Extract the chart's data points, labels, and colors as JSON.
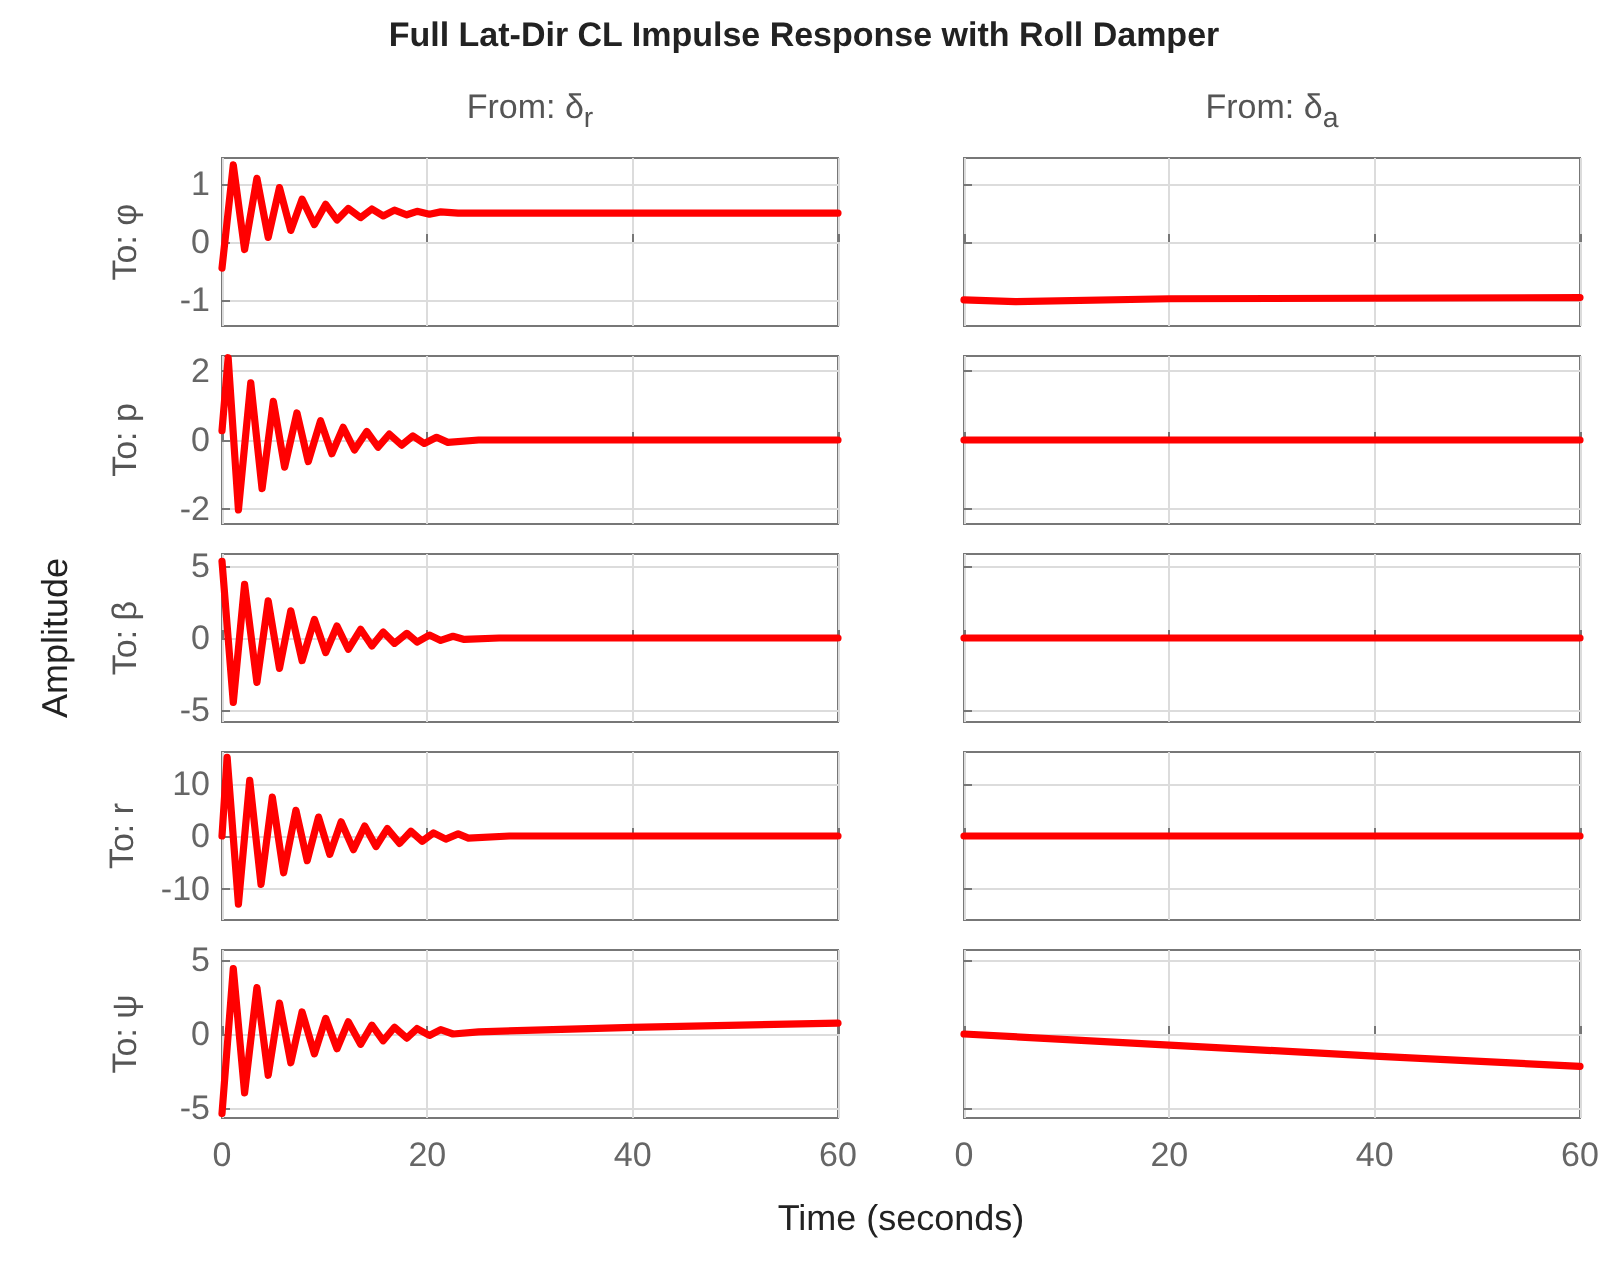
{
  "chart_data": [
    {
      "type": "line",
      "title": "Full Lat-Dir CL Impulse Response with Roll Damper",
      "subtitle": "From: δ$_{r}$",
      "ylabel": "To: φ",
      "series": [
        {
          "color": "#ff0000",
          "x": [
            0,
            1.1,
            2.2,
            3.4,
            4.5,
            5.6,
            6.7,
            7.8,
            9.0,
            10.1,
            11.2,
            12.3,
            13.5,
            14.6,
            15.7,
            16.8,
            18,
            19,
            20.2,
            21.3,
            23,
            60
          ],
          "values": [
            -0.45,
            1.33,
            -0.13,
            1.1,
            0.08,
            0.94,
            0.2,
            0.74,
            0.3,
            0.65,
            0.38,
            0.58,
            0.42,
            0.57,
            0.45,
            0.55,
            0.47,
            0.53,
            0.48,
            0.52,
            0.5,
            0.5
          ]
        }
      ],
      "xlim": [
        0,
        60
      ],
      "xticks": [
        0,
        20,
        40,
        60
      ],
      "ylim": [
        -1.45,
        1.45
      ],
      "yticks": [
        -1,
        0,
        1
      ],
      "grid": true,
      "tick_labels": "y"
    },
    {
      "type": "line",
      "subtitle": "From: δ$_{a}$",
      "series": [
        {
          "color": "#ff0000",
          "x": [
            0,
            5,
            20,
            60
          ],
          "values": [
            -1.0,
            -1.03,
            -0.98,
            -0.96
          ]
        }
      ],
      "xlim": [
        0,
        60
      ],
      "xticks": [
        0,
        20,
        40,
        60
      ],
      "ylim": [
        -1.45,
        1.45
      ],
      "yticks": [
        -1,
        0,
        1
      ],
      "grid": true,
      "tick_labels": false
    },
    {
      "type": "line",
      "ylabel": "To: p",
      "series": [
        {
          "color": "#ff0000",
          "x": [
            0,
            0.6,
            1.6,
            2.8,
            3.9,
            5.0,
            6.1,
            7.3,
            8.4,
            9.6,
            10.7,
            11.8,
            12.9,
            14.1,
            15.2,
            16.3,
            17.5,
            18.6,
            19.7,
            20.9,
            22,
            25,
            60
          ],
          "values": [
            0.27,
            2.4,
            -2.04,
            1.67,
            -1.42,
            1.13,
            -0.79,
            0.79,
            -0.63,
            0.56,
            -0.4,
            0.37,
            -0.29,
            0.25,
            -0.21,
            0.17,
            -0.15,
            0.12,
            -0.1,
            0.08,
            -0.07,
            0,
            0
          ]
        }
      ],
      "xlim": [
        0,
        60
      ],
      "xticks": [
        0,
        20,
        40,
        60
      ],
      "ylim": [
        -2.45,
        2.45
      ],
      "yticks": [
        -2,
        0,
        2
      ],
      "grid": true,
      "tick_labels": "y"
    },
    {
      "type": "line",
      "series": [
        {
          "color": "#ff0000",
          "x": [
            0,
            20,
            60
          ],
          "values": [
            0,
            0,
            0
          ]
        }
      ],
      "xlim": [
        0,
        60
      ],
      "xticks": [
        0,
        20,
        40,
        60
      ],
      "ylim": [
        -2.45,
        2.45
      ],
      "yticks": [
        -2,
        0,
        2
      ],
      "grid": true,
      "tick_labels": false
    },
    {
      "type": "line",
      "ylabel": "To: β",
      "annotations": [
        "Amplitude"
      ],
      "series": [
        {
          "color": "#ff0000",
          "x": [
            0,
            1.1,
            2.2,
            3.4,
            4.5,
            5.6,
            6.7,
            7.8,
            9.0,
            10.1,
            11.2,
            12.3,
            13.5,
            14.6,
            15.7,
            16.8,
            18,
            19,
            20.2,
            21.3,
            22.5,
            23.6,
            27,
            60
          ],
          "values": [
            5.3,
            -4.45,
            3.7,
            -3.07,
            2.57,
            -2.1,
            1.88,
            -1.56,
            1.28,
            -1.0,
            0.83,
            -0.78,
            0.6,
            -0.55,
            0.41,
            -0.37,
            0.32,
            -0.28,
            0.2,
            -0.17,
            0.12,
            -0.1,
            0,
            0
          ]
        }
      ],
      "xlim": [
        0,
        60
      ],
      "xticks": [
        0,
        20,
        40,
        60
      ],
      "ylim": [
        -5.8,
        5.8
      ],
      "yticks": [
        -5,
        0,
        5
      ],
      "grid": true,
      "tick_labels": "y"
    },
    {
      "type": "line",
      "series": [
        {
          "color": "#ff0000",
          "x": [
            0,
            20,
            60
          ],
          "values": [
            0,
            0,
            0
          ]
        }
      ],
      "xlim": [
        0,
        60
      ],
      "xticks": [
        0,
        20,
        40,
        60
      ],
      "ylim": [
        -5.8,
        5.8
      ],
      "yticks": [
        -5,
        0,
        5
      ],
      "grid": true,
      "tick_labels": false
    },
    {
      "type": "line",
      "ylabel": "To: r",
      "series": [
        {
          "color": "#ff0000",
          "x": [
            0,
            0.5,
            1.6,
            2.7,
            3.8,
            4.9,
            6.0,
            7.2,
            8.3,
            9.4,
            10.5,
            11.6,
            12.8,
            13.9,
            15,
            16.1,
            17.3,
            18.4,
            19.5,
            20.6,
            21.8,
            23,
            24,
            28,
            60
          ],
          "values": [
            0,
            15,
            -13,
            10.6,
            -9.2,
            7.4,
            -7,
            4.9,
            -4.7,
            3.6,
            -3.5,
            2.7,
            -2.6,
            1.9,
            -2.0,
            1.4,
            -1.4,
            0.9,
            -1.0,
            0.6,
            -0.6,
            0.4,
            -0.4,
            0,
            0
          ]
        }
      ],
      "xlim": [
        0,
        60
      ],
      "xticks": [
        0,
        20,
        40,
        60
      ],
      "ylim": [
        -16,
        16
      ],
      "yticks": [
        -10,
        0,
        10
      ],
      "grid": true,
      "tick_labels": "y"
    },
    {
      "type": "line",
      "series": [
        {
          "color": "#ff0000",
          "x": [
            0,
            20,
            60
          ],
          "values": [
            0,
            0,
            0
          ]
        }
      ],
      "xlim": [
        0,
        60
      ],
      "xticks": [
        0,
        20,
        40,
        60
      ],
      "ylim": [
        -16,
        16
      ],
      "yticks": [
        -10,
        0,
        10
      ],
      "grid": true,
      "tick_labels": false
    },
    {
      "type": "line",
      "ylabel": "To: ψ",
      "xlabel": "Time (seconds)",
      "series": [
        {
          "color": "#ff0000",
          "x": [
            0,
            1.1,
            2.2,
            3.4,
            4.5,
            5.6,
            6.7,
            7.8,
            9.0,
            10.1,
            11.2,
            12.3,
            13.5,
            14.6,
            15.7,
            16.8,
            18,
            19,
            20.2,
            21.3,
            22.5,
            25,
            40,
            60
          ],
          "values": [
            -5.4,
            4.44,
            -4.0,
            3.15,
            -2.8,
            2.1,
            -1.95,
            1.5,
            -1.35,
            1.06,
            -1.0,
            0.83,
            -0.7,
            0.6,
            -0.46,
            0.46,
            -0.28,
            0.37,
            -0.1,
            0.3,
            0,
            0.15,
            0.45,
            0.74
          ]
        }
      ],
      "xlim": [
        0,
        60
      ],
      "xticks": [
        0,
        20,
        40,
        60
      ],
      "ylim": [
        -5.7,
        5.7
      ],
      "yticks": [
        -5,
        0,
        5
      ],
      "grid": true
    },
    {
      "type": "line",
      "series": [
        {
          "color": "#ff0000",
          "x": [
            0,
            20,
            40,
            60
          ],
          "values": [
            0,
            -0.75,
            -1.5,
            -2.2
          ]
        }
      ],
      "xlim": [
        0,
        60
      ],
      "xticks": [
        0,
        20,
        40,
        60
      ],
      "ylim": [
        -5.7,
        5.7
      ],
      "yticks": [
        -5,
        0,
        5
      ],
      "grid": true,
      "tick_labels": "x"
    }
  ]
}
